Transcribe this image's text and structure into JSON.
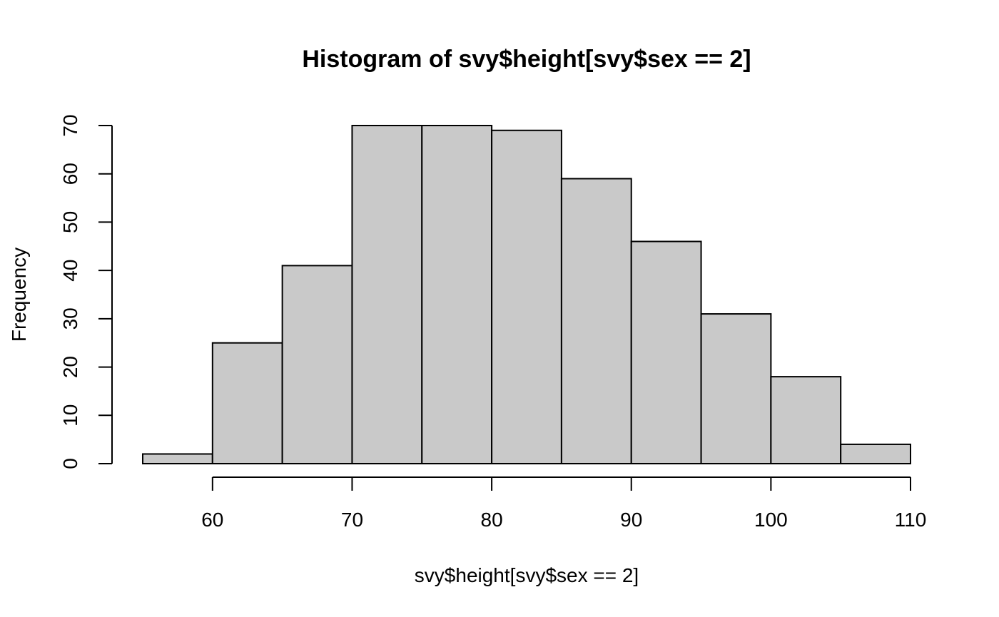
{
  "chart_data": {
    "type": "bar",
    "title": "Histogram of svy$height[svy$sex == 2]",
    "xlabel": "svy$height[svy$sex == 2]",
    "ylabel": "Frequency",
    "bins": [
      {
        "start": 55,
        "end": 60,
        "count": 2
      },
      {
        "start": 60,
        "end": 65,
        "count": 25
      },
      {
        "start": 65,
        "end": 70,
        "count": 41
      },
      {
        "start": 70,
        "end": 75,
        "count": 70
      },
      {
        "start": 75,
        "end": 80,
        "count": 70
      },
      {
        "start": 80,
        "end": 85,
        "count": 69
      },
      {
        "start": 85,
        "end": 90,
        "count": 59
      },
      {
        "start": 90,
        "end": 95,
        "count": 46
      },
      {
        "start": 95,
        "end": 100,
        "count": 31
      },
      {
        "start": 100,
        "end": 105,
        "count": 18
      },
      {
        "start": 105,
        "end": 110,
        "count": 4
      }
    ],
    "xlim": [
      55,
      110
    ],
    "ylim": [
      0,
      70
    ],
    "x_ticks": [
      60,
      70,
      80,
      90,
      100,
      110
    ],
    "y_ticks": [
      0,
      10,
      20,
      30,
      40,
      50,
      60,
      70
    ],
    "grid": false,
    "legend": "none",
    "colors": {
      "bar_fill": "#c9c9c9",
      "bar_edge": "#000000",
      "axis": "#000000"
    }
  }
}
